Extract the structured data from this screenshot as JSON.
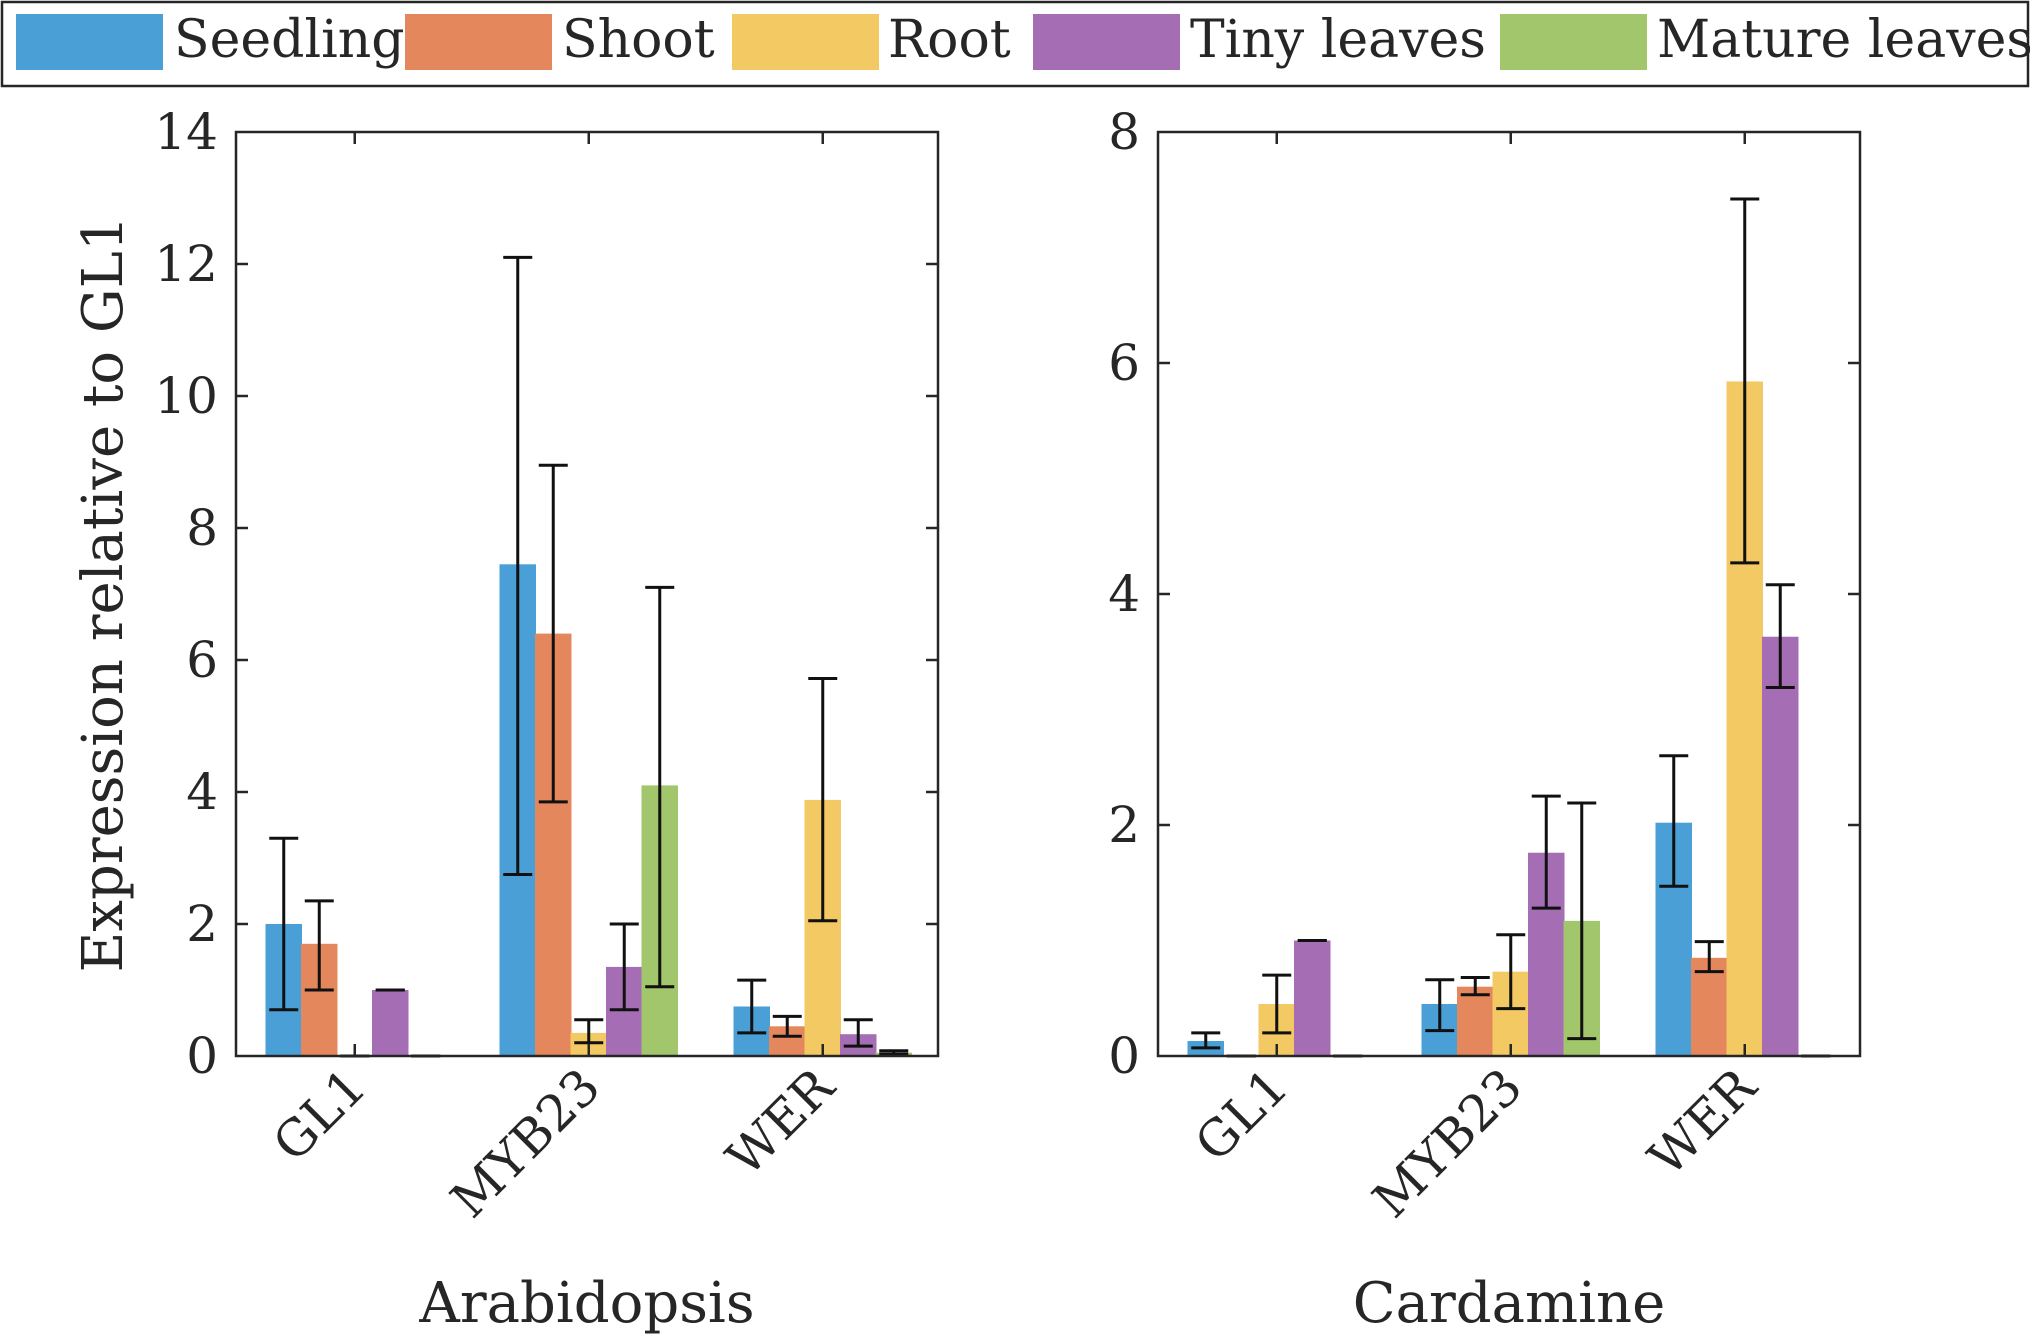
{
  "legend": {
    "entries": [
      {
        "name": "Seedling",
        "color": "#4a9fd7"
      },
      {
        "name": "Shoot",
        "color": "#e5875c"
      },
      {
        "name": "Root",
        "color": "#f2c963"
      },
      {
        "name": "Tiny leaves",
        "color": "#a46db4"
      },
      {
        "name": "Mature leaves",
        "color": "#a1c66b"
      }
    ]
  },
  "chart_data": [
    {
      "type": "bar",
      "title": "",
      "xlabel": "Arabidopsis",
      "ylabel": "Expression relative to GL1",
      "categories": [
        "GL1",
        "MYB23",
        "WER"
      ],
      "ylim": [
        0,
        14
      ],
      "yticks": [
        0,
        2,
        4,
        6,
        8,
        10,
        12,
        14
      ],
      "ytick_labels": [
        "0",
        "2",
        "4",
        "6",
        "8",
        "10",
        "12",
        "14"
      ],
      "series": [
        {
          "name": "Seedling",
          "values": [
            2.0,
            7.45,
            0.75
          ],
          "err_low": [
            0.7,
            2.75,
            0.35
          ],
          "err_high": [
            3.3,
            12.1,
            1.15
          ]
        },
        {
          "name": "Shoot",
          "values": [
            1.7,
            6.4,
            0.45
          ],
          "err_low": [
            1.0,
            3.85,
            0.3
          ],
          "err_high": [
            2.35,
            8.95,
            0.6
          ]
        },
        {
          "name": "Root",
          "values": [
            0.0,
            0.35,
            3.88
          ],
          "err_low": [
            0.0,
            0.2,
            2.05
          ],
          "err_high": [
            0.0,
            0.55,
            5.72
          ]
        },
        {
          "name": "Tiny leaves",
          "values": [
            1.0,
            1.35,
            0.33
          ],
          "err_low": [
            1.0,
            0.7,
            0.15
          ],
          "err_high": [
            1.0,
            2.0,
            0.55
          ]
        },
        {
          "name": "Mature leaves",
          "values": [
            0.0,
            4.1,
            0.05
          ],
          "err_low": [
            0.0,
            1.05,
            0.03
          ],
          "err_high": [
            0.0,
            7.1,
            0.08
          ]
        }
      ]
    },
    {
      "type": "bar",
      "title": "",
      "xlabel": "Cardamine",
      "ylabel": "",
      "categories": [
        "GL1",
        "MYB23",
        "WER"
      ],
      "ylim": [
        0,
        8
      ],
      "yticks": [
        0,
        2,
        4,
        6,
        8
      ],
      "ytick_labels": [
        "0",
        "2",
        "4",
        "6",
        "8"
      ],
      "series": [
        {
          "name": "Seedling",
          "values": [
            0.13,
            0.45,
            2.02
          ],
          "err_low": [
            0.07,
            0.22,
            1.47
          ],
          "err_high": [
            0.2,
            0.66,
            2.6
          ]
        },
        {
          "name": "Shoot",
          "values": [
            0.0,
            0.6,
            0.85
          ],
          "err_low": [
            0.0,
            0.53,
            0.73
          ],
          "err_high": [
            0.0,
            0.68,
            0.99
          ]
        },
        {
          "name": "Root",
          "values": [
            0.45,
            0.73,
            5.84
          ],
          "err_low": [
            0.2,
            0.41,
            4.27
          ],
          "err_high": [
            0.7,
            1.05,
            7.42
          ]
        },
        {
          "name": "Tiny leaves",
          "values": [
            1.0,
            1.76,
            3.63
          ],
          "err_low": [
            1.0,
            1.28,
            3.19
          ],
          "err_high": [
            1.0,
            2.25,
            4.08
          ]
        },
        {
          "name": "Mature leaves",
          "values": [
            0.0,
            1.17,
            0.0
          ],
          "err_low": [
            0.0,
            0.15,
            0.0
          ],
          "err_high": [
            0.0,
            2.19,
            0.0
          ]
        }
      ]
    }
  ]
}
